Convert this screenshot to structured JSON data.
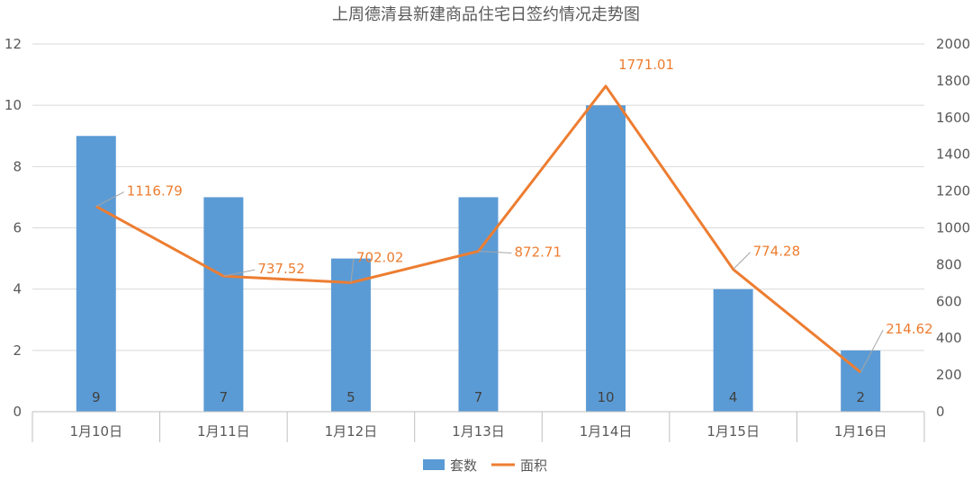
{
  "chart_data": {
    "type": "bar",
    "title": "上周德清县新建商品住宅日签约情况走势图",
    "categories": [
      "1月10日",
      "1月11日",
      "1月12日",
      "1月13日",
      "1月14日",
      "1月15日",
      "1月16日"
    ],
    "series": [
      {
        "name": "套数",
        "type": "bar",
        "axis": "left",
        "color": "#5b9bd5",
        "values": [
          9,
          7,
          5,
          7,
          10,
          4,
          2
        ],
        "labels": [
          "9",
          "7",
          "5",
          "7",
          "10",
          "4",
          "2"
        ]
      },
      {
        "name": "面积",
        "type": "line",
        "axis": "right",
        "color": "#ed7d31",
        "values": [
          1116.79,
          737.52,
          702.02,
          872.71,
          1771.01,
          774.28,
          214.62
        ],
        "labels": [
          "1116.79",
          "737.52",
          "702.02",
          "872.71",
          "1771.01",
          "774.28",
          "214.62"
        ]
      }
    ],
    "y_left": {
      "min": 0,
      "max": 12,
      "ticks": [
        "0",
        "2",
        "4",
        "6",
        "8",
        "10",
        "12"
      ]
    },
    "y_right": {
      "min": 0,
      "max": 2000,
      "ticks": [
        "0",
        "200",
        "400",
        "600",
        "800",
        "1000",
        "1200",
        "1400",
        "1600",
        "1800",
        "2000"
      ]
    },
    "grid": true,
    "legend": "bottom-center"
  }
}
